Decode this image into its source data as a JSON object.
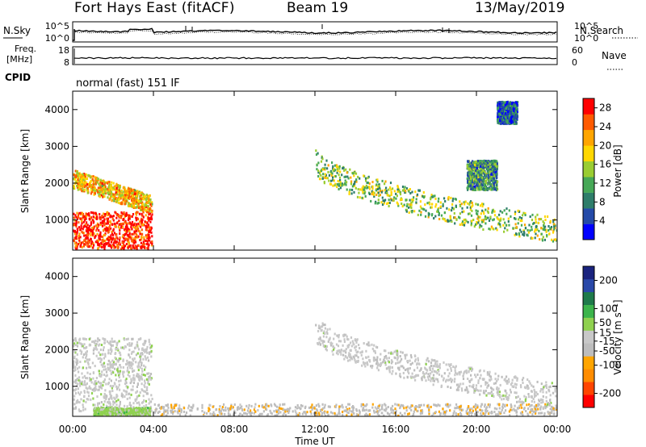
{
  "header": {
    "title": "Fort Hays East (fitACF)",
    "beam": "Beam 19",
    "date": "13/May/2019"
  },
  "strip_labels": {
    "nsky": "N.Sky",
    "nsearch": "N.Search",
    "freq_top": "Freq.",
    "freq_unit": "[MHz]",
    "cpid": "CPID",
    "nave": "Nave"
  },
  "strip_ticks": {
    "noise_left": [
      "10^5",
      "10^0"
    ],
    "noise_right": [
      "10^5",
      "10^0"
    ],
    "freq_left": [
      "18",
      "8"
    ],
    "nave_right": [
      "60",
      "0"
    ]
  },
  "cpid_text": "normal (fast) 151 IF",
  "colors": {
    "power": [
      "#0000ff",
      "#244aa8",
      "#2e7d6a",
      "#46a857",
      "#9acd32",
      "#ffd700",
      "#ffa500",
      "#ff5a00",
      "#ff0000"
    ],
    "velocity": [
      "#ff0000",
      "#ff4500",
      "#ff8c00",
      "#ffa500",
      "#bdbdbd",
      "#c8c8c8",
      "#8fd14f",
      "#3cb44b",
      "#1e7a4a",
      "#2948a8",
      "#1a237e"
    ]
  },
  "chart_data": [
    {
      "type": "heatmap",
      "name": "power",
      "ylabel": "Slant Range [km]",
      "ylim": [
        180,
        4500
      ],
      "yticks": [
        "1000",
        "2000",
        "3000",
        "4000"
      ],
      "xlim": [
        0,
        24
      ],
      "colorbar": {
        "label": "Power [dB]",
        "ticks": [
          "4",
          "8",
          "12",
          "16",
          "20",
          "24",
          "28"
        ],
        "range": [
          0,
          30
        ]
      },
      "regions": [
        {
          "feature": "early oblique band",
          "t": [
            0,
            3.9
          ],
          "range_km": [
            1400,
            2300
          ],
          "power_db": 20
        },
        {
          "feature": "early near range echoes",
          "t": [
            0,
            3.9
          ],
          "range_km": [
            200,
            1200
          ],
          "power_db": 28
        },
        {
          "feature": "afternoon descending band",
          "t": [
            12,
            24
          ],
          "range_km": [
            500,
            2800
          ],
          "power_db": 14
        },
        {
          "feature": "evening hook",
          "t": [
            19.5,
            21
          ],
          "range_km": [
            1800,
            2600
          ],
          "power_db": 10
        },
        {
          "feature": "late high range echoes",
          "t": [
            21,
            22
          ],
          "range_km": [
            3600,
            4200
          ],
          "power_db": 6
        }
      ]
    },
    {
      "type": "heatmap",
      "name": "velocity",
      "xlabel": "Time UT",
      "ylabel": "Slant Range [km]",
      "ylim": [
        180,
        4500
      ],
      "yticks": [
        "1000",
        "2000",
        "3000",
        "4000"
      ],
      "xticks": [
        "00:00",
        "04:00",
        "08:00",
        "12:00",
        "16:00",
        "20:00",
        "00:00"
      ],
      "xlim": [
        0,
        24
      ],
      "colorbar": {
        "label": "Velocity [m s⁻¹]",
        "ticks": [
          "200",
          "100",
          "50",
          "15",
          "-15",
          "-50",
          "-100",
          "-200"
        ],
        "range": [
          -250,
          250
        ]
      },
      "regions": [
        {
          "feature": "early band",
          "t": [
            0,
            3.9
          ],
          "range_km": [
            300,
            2300
          ],
          "velocity_ms": 0
        },
        {
          "feature": "near range flow",
          "t": [
            1,
            3.8
          ],
          "range_km": [
            180,
            400
          ],
          "velocity_ms": 40
        },
        {
          "feature": "ionospheric scatter",
          "t": [
            12,
            24
          ],
          "range_km": [
            500,
            2800
          ],
          "velocity_ms": -5
        },
        {
          "feature": "near range afternoon",
          "t": [
            4,
            24
          ],
          "range_km": [
            180,
            500
          ],
          "velocity_ms": -50
        }
      ]
    }
  ]
}
